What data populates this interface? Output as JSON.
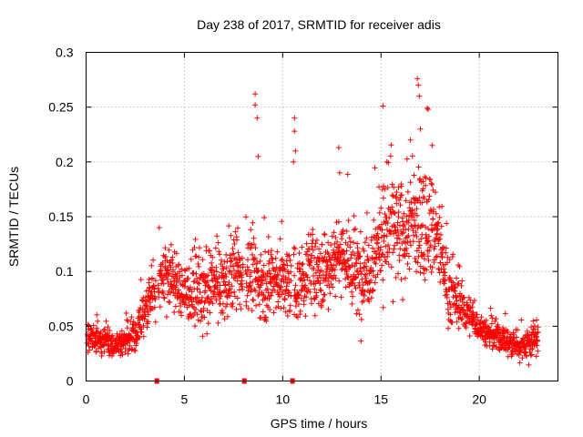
{
  "chart_data": {
    "type": "scatter",
    "title": "Day 238 of 2017, SRMTID for receiver adis",
    "xlabel": "GPS time / hours",
    "ylabel": "SRMTID / TECUs",
    "xlim": [
      0,
      24
    ],
    "ylim": [
      0,
      0.3
    ],
    "xticks": [
      0,
      5,
      10,
      15,
      20
    ],
    "xtick_labels": [
      "0",
      "5",
      "10",
      "15",
      "20"
    ],
    "yticks": [
      0,
      0.05,
      0.1,
      0.15,
      0.2,
      0.25,
      0.3
    ],
    "ytick_labels": [
      "0",
      "0.05",
      "0.1",
      "0.15",
      "0.2",
      "0.25",
      "0.3"
    ],
    "grid": true,
    "marker": "+",
    "color": "#ff0000",
    "data_gaps_at_hours": [
      3.6,
      8.05,
      10.5
    ],
    "trend": {
      "x": [
        0,
        0.5,
        1,
        1.5,
        2,
        2.5,
        3,
        3.5,
        4,
        4.5,
        5,
        5.5,
        6,
        6.5,
        7,
        7.5,
        8,
        8.5,
        9,
        9.5,
        10,
        10.5,
        11,
        11.5,
        12,
        12.5,
        13,
        13.5,
        14,
        14.5,
        15,
        15.5,
        16,
        16.5,
        17,
        17.5,
        18,
        18.5,
        19,
        19.5,
        20,
        20.5,
        21,
        21.5,
        22,
        22.5,
        23
      ],
      "y": [
        0.042,
        0.038,
        0.035,
        0.034,
        0.036,
        0.042,
        0.065,
        0.085,
        0.1,
        0.09,
        0.08,
        0.085,
        0.075,
        0.09,
        0.085,
        0.1,
        0.095,
        0.1,
        0.085,
        0.095,
        0.09,
        0.085,
        0.09,
        0.105,
        0.095,
        0.11,
        0.12,
        0.1,
        0.095,
        0.11,
        0.13,
        0.14,
        0.13,
        0.145,
        0.14,
        0.15,
        0.12,
        0.08,
        0.07,
        0.06,
        0.05,
        0.042,
        0.04,
        0.035,
        0.032,
        0.035,
        0.04
      ],
      "spread": [
        0.01,
        0.012,
        0.012,
        0.01,
        0.012,
        0.015,
        0.02,
        0.025,
        0.03,
        0.025,
        0.025,
        0.03,
        0.03,
        0.03,
        0.03,
        0.03,
        0.03,
        0.03,
        0.025,
        0.03,
        0.03,
        0.03,
        0.03,
        0.03,
        0.03,
        0.03,
        0.03,
        0.035,
        0.035,
        0.035,
        0.04,
        0.045,
        0.045,
        0.045,
        0.045,
        0.04,
        0.035,
        0.025,
        0.02,
        0.015,
        0.012,
        0.012,
        0.012,
        0.012,
        0.012,
        0.015,
        0.015
      ]
    },
    "outlier_points": [
      {
        "x": 8.6,
        "y": 0.262
      },
      {
        "x": 8.6,
        "y": 0.252
      },
      {
        "x": 8.7,
        "y": 0.24
      },
      {
        "x": 8.75,
        "y": 0.205
      },
      {
        "x": 10.6,
        "y": 0.24
      },
      {
        "x": 10.6,
        "y": 0.228
      },
      {
        "x": 10.65,
        "y": 0.21
      },
      {
        "x": 10.55,
        "y": 0.2
      },
      {
        "x": 12.85,
        "y": 0.213
      },
      {
        "x": 12.9,
        "y": 0.19
      },
      {
        "x": 15.1,
        "y": 0.251
      },
      {
        "x": 15.3,
        "y": 0.2
      },
      {
        "x": 16.85,
        "y": 0.276
      },
      {
        "x": 16.9,
        "y": 0.27
      },
      {
        "x": 16.95,
        "y": 0.26
      },
      {
        "x": 17.35,
        "y": 0.249
      },
      {
        "x": 17.4,
        "y": 0.248
      },
      {
        "x": 17.0,
        "y": 0.23
      },
      {
        "x": 16.5,
        "y": 0.22
      },
      {
        "x": 17.6,
        "y": 0.215
      }
    ]
  }
}
